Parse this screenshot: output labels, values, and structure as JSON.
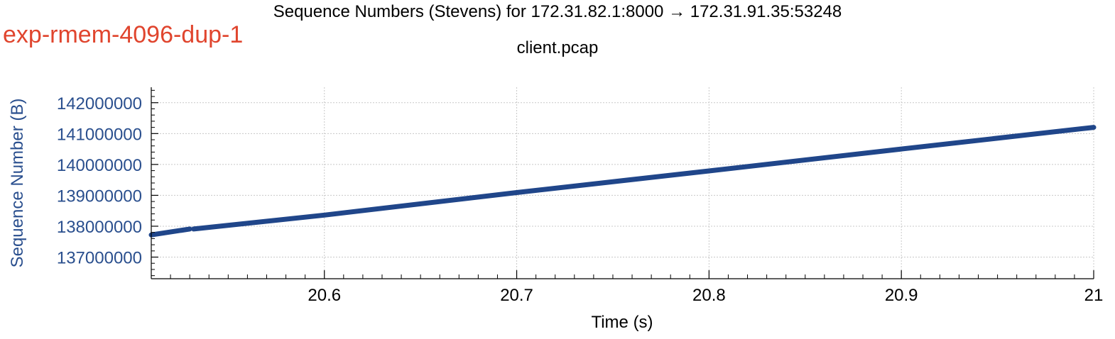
{
  "experiment_label": "exp-rmem-4096-dup-1",
  "colors": {
    "experiment": "#e0452e",
    "series": "#20468a",
    "axis_label": "#2a4f8e",
    "grid": "#c8c8c8"
  },
  "chart_data": {
    "type": "scatter",
    "title": "Sequence Numbers (Stevens) for 172.31.82.1:8000 → 172.31.91.35:53248",
    "subtitle": "client.pcap",
    "xlabel": "Time (s)",
    "ylabel": "Sequence Number (B)",
    "xlim": [
      20.51,
      21.0
    ],
    "ylim": [
      136300000,
      142500000
    ],
    "x_ticks": [
      20.6,
      20.7,
      20.8,
      20.9,
      21
    ],
    "x_tick_labels": [
      "20.6",
      "20.7",
      "20.8",
      "20.9",
      "21"
    ],
    "y_ticks": [
      137000000,
      138000000,
      139000000,
      140000000,
      141000000,
      142000000
    ],
    "y_tick_labels": [
      "137000000",
      "138000000",
      "139000000",
      "140000000",
      "141000000",
      "142000000"
    ],
    "grid": true,
    "series": [
      {
        "segments": [
          {
            "x": [
              20.51,
              20.53
            ],
            "y": [
              137720000,
              137910000
            ]
          },
          {
            "x": [
              20.532,
              20.6,
              20.7,
              20.8,
              20.9,
              21.0
            ],
            "y": [
              137910000,
              138360000,
              139090000,
              139790000,
              140500000,
              141200000
            ]
          }
        ]
      }
    ]
  }
}
